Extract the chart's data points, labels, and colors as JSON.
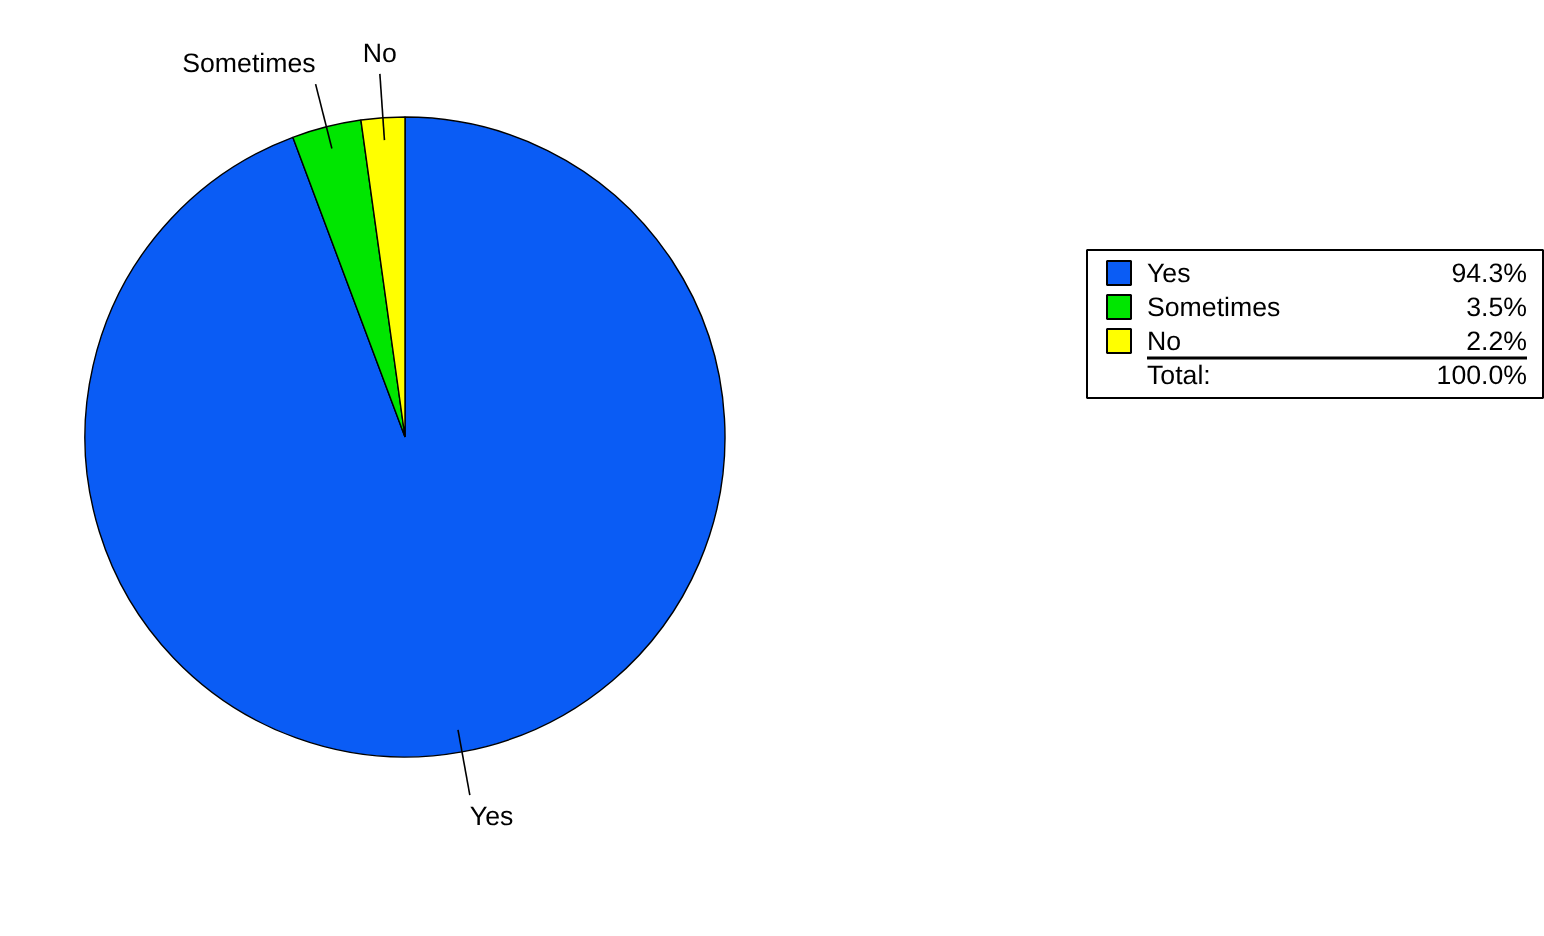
{
  "chart_data": {
    "type": "pie",
    "categories": [
      "Yes",
      "Sometimes",
      "No"
    ],
    "values": [
      94.3,
      3.5,
      2.2
    ],
    "colors": [
      "#0a5cf5",
      "#00e600",
      "#ffff00"
    ],
    "value_labels": [
      "94.3%",
      "3.5%",
      "2.2%"
    ],
    "annotations": [
      "Total:",
      "100.0%"
    ],
    "legend": "right"
  }
}
